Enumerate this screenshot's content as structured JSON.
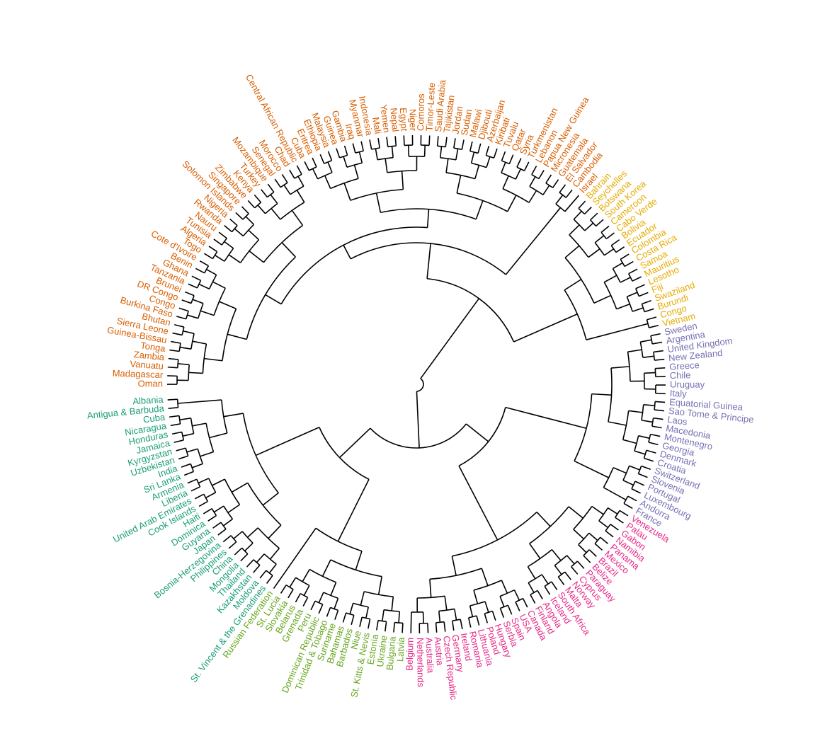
{
  "groups": [
    {
      "id": "orange",
      "color": "#D95F02",
      "labels": [
        "Oman",
        "Madagascar",
        "Vanuatu",
        "Zambia",
        "Tonga",
        "Guinea-Bissau",
        "Sierra Leone",
        "Bhutan",
        "Burkina Faso",
        "Congo",
        "DR Congo",
        "Brunei",
        "Tanzania",
        "Ghana",
        "Benin",
        "Cote d'Ivoire",
        "Togo",
        "Algeria",
        "Tunisia",
        "Nauru",
        "Rwanda",
        "Nigeria",
        "Solomon Islands",
        "Singapore",
        "Zimbabwe",
        "Kenya",
        "Turkey",
        "Mozambique",
        "Senegal",
        "Morocco",
        "Chad",
        "Central African Republic",
        "Cuba",
        "Eritrea",
        "Ethiopia",
        "Malaysia",
        "Guinea",
        "Gambia",
        "Iraq",
        "Myanmar",
        "Indonesia",
        "Mali",
        "Yemen",
        "Nepal",
        "Egypt",
        "Niger",
        "Comoros",
        "Timor-Leste",
        "Saudi Arabia",
        "Tajikistan",
        "Jordan",
        "Sudan",
        "Malawi",
        "Djibouti",
        "Azerbaijan",
        "Kiribati",
        "Tuvalu",
        "Qatar",
        "Syria",
        "Turkmenistan",
        "Lebanon",
        "Papua New Guinea",
        "Micronesia",
        "Guatemala",
        "El Salvador",
        "Cambodia",
        "Israel"
      ]
    },
    {
      "id": "gold",
      "color": "#E6AB02",
      "labels": [
        "Bahrain",
        "Seychelles",
        "Botswana",
        "South Korea",
        "Cameroon",
        "Cabo Verde",
        "Bolivia",
        "Ecuador",
        "Colombia",
        "Costa Rica",
        "Samoa",
        "Mauritius",
        "Lesotho",
        "Fiji",
        "Swaziland",
        "Burundi",
        "Congo",
        "Vietnam"
      ]
    },
    {
      "id": "purple",
      "color": "#7570B3",
      "labels": [
        "Sweden",
        "Argentina",
        "United Kingdom",
        "New Zealand",
        "Greece",
        "Chile",
        "Uruguay",
        "Italy",
        "Equatorial Guinea",
        "Sao Tome & Principe",
        "Laos",
        "Macedonia",
        "Montenegro",
        "Georgia",
        "Denmark",
        "Croatia",
        "Switzerland",
        "Slovenia",
        "Portugal",
        "Luxembourg",
        "Andorra",
        "France"
      ]
    },
    {
      "id": "pink",
      "color": "#E7298A",
      "labels": [
        "Venezuela",
        "Palau",
        "Gabon",
        "Namibia",
        "Panama",
        "Mexico",
        "Brazil",
        "Belize",
        "Paraguay",
        "Cyprus",
        "Norway",
        "Malta",
        "South Africa",
        "Iceland",
        "Angola",
        "Finland",
        "Canada",
        "USA",
        "Spain",
        "Serbia",
        "Hungary",
        "Poland",
        "Lithuania",
        "Romania",
        "Ireland",
        "Germany",
        "Czech Republic",
        "Austria",
        "Australia",
        "Netherlands",
        "Belgium"
      ]
    },
    {
      "id": "green",
      "color": "#66A61E",
      "labels": [
        "Latvia",
        "Bulgaria",
        "Ukraine",
        "Estonia",
        "St. Kitts & Nevis",
        "Niue",
        "Barbados",
        "Bahamas",
        "Suriname",
        "Trinidad & Tobago",
        "Dominican Republic",
        "Peru",
        "Grenada",
        "Belarus",
        "Slovakia",
        "St. Lucia",
        "Russian Federation"
      ]
    },
    {
      "id": "teal",
      "color": "#1B9E77",
      "labels": [
        "St. Vincent & the Grenadines",
        "Moldova",
        "Kazakhstan",
        "Thailand",
        "Mongolia",
        "China",
        "Philippines",
        "Bosnia-Herzegovina",
        "Japan",
        "Guyana",
        "Dominica",
        "Haiti",
        "Cook Islands",
        "United Arab Emirates",
        "Liberia",
        "Armenia",
        "Sri Lanka",
        "India",
        "Uzbekistan",
        "Kyrgyzstan",
        "Jamaica",
        "Honduras",
        "Nicaragua",
        "Cuba",
        "Antigua & Barbuda",
        "Albania"
      ]
    }
  ]
}
